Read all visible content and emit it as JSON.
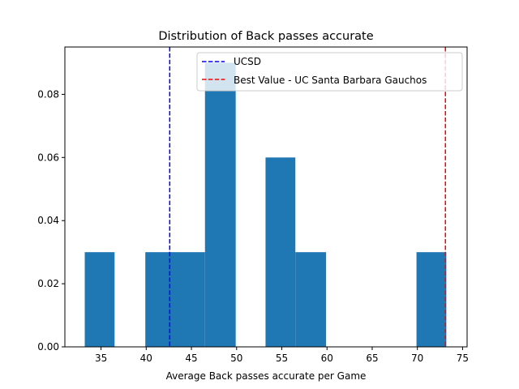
{
  "chart_data": {
    "type": "bar",
    "title": "Distribution of Back passes accurate",
    "xlabel": "Average Back passes accurate per Game",
    "ylabel": "",
    "xlim": [
      31.0,
      75.5
    ],
    "ylim": [
      0,
      0.095
    ],
    "xticks": [
      35,
      40,
      45,
      50,
      55,
      60,
      65,
      70,
      75
    ],
    "yticks": [
      0.0,
      0.02,
      0.04,
      0.06,
      0.08
    ],
    "ytick_labels": [
      "0.00",
      "0.02",
      "0.04",
      "0.06",
      "0.08"
    ],
    "bar_color": "#1f77b4",
    "bins": [
      {
        "x0": 33.2,
        "x1": 36.5,
        "value": 0.03
      },
      {
        "x0": 36.5,
        "x1": 39.9,
        "value": 0.0
      },
      {
        "x0": 39.9,
        "x1": 43.2,
        "value": 0.03
      },
      {
        "x0": 43.2,
        "x1": 46.5,
        "value": 0.03
      },
      {
        "x0": 46.5,
        "x1": 49.9,
        "value": 0.09
      },
      {
        "x0": 49.9,
        "x1": 53.2,
        "value": 0.0
      },
      {
        "x0": 53.2,
        "x1": 56.5,
        "value": 0.06
      },
      {
        "x0": 56.5,
        "x1": 59.9,
        "value": 0.03
      },
      {
        "x0": 59.9,
        "x1": 63.2,
        "value": 0.0
      },
      {
        "x0": 63.2,
        "x1": 66.6,
        "value": 0.0
      },
      {
        "x0": 66.6,
        "x1": 69.9,
        "value": 0.0
      },
      {
        "x0": 69.9,
        "x1": 73.2,
        "value": 0.03
      }
    ],
    "reference_lines": [
      {
        "name": "UCSD",
        "x": 42.6,
        "color": "#0000ff",
        "style": "dashed"
      },
      {
        "name": "Best Value - UC Santa Barbara Gauchos",
        "x": 73.1,
        "color": "#ff0000",
        "style": "dashed"
      }
    ],
    "legend_position": "top-right",
    "grid": false
  }
}
